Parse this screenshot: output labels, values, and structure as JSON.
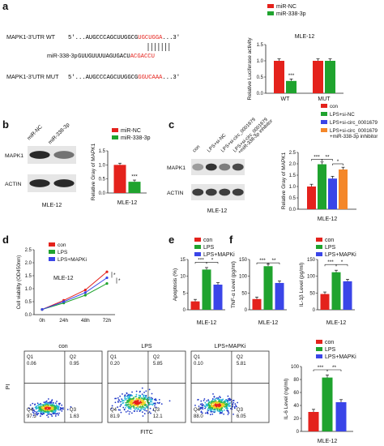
{
  "panel_letters": [
    "a",
    "b",
    "c",
    "d",
    "e",
    "f"
  ],
  "colors": {
    "red": "#e4221c",
    "green": "#1fa32e",
    "blue": "#3a45e8",
    "orange": "#f4872a",
    "gray": "#555555"
  },
  "panel_a": {
    "rows": [
      {
        "label": "MAPK1-3'UTR WT",
        "prefix": "5'...AUGCCCAGCUUGGCG",
        "highlight": "UGCUGGA",
        "suffix": "...3'"
      },
      {
        "label": "miR-338-3p",
        "prefix": "GUUGUUUUAGUGACU",
        "highlight": "ACGACCU",
        "suffix": ""
      },
      {
        "label": "MAPK1-3'UTR MUT",
        "prefix": "5'...AUGCCCAGCUUGGCG",
        "highlight": "GGUCAAA",
        "suffix": "...3'"
      }
    ]
  },
  "chart_data": [
    {
      "panel": "a",
      "type": "bar",
      "categories": [
        "WT",
        "MUT"
      ],
      "series": [
        {
          "name": "miR-NC",
          "values": [
            1.0,
            1.0
          ]
        },
        {
          "name": "miR-338-3p",
          "values": [
            0.38,
            1.0
          ]
        }
      ],
      "ylabel": "Relative Luciferase activity",
      "ylim": [
        0,
        1.5
      ],
      "yticks": [
        "0.0",
        "0.5",
        "1.0",
        "1.5"
      ],
      "title": "MLE-12",
      "annotations": [
        "***"
      ]
    },
    {
      "panel": "b",
      "type": "bar",
      "categories": [
        "MLE-12"
      ],
      "series": [
        {
          "name": "miR-NC",
          "values": [
            1.0
          ]
        },
        {
          "name": "miR-338-3p",
          "values": [
            0.4
          ]
        }
      ],
      "ylabel": "Relative Gray of MAPK1",
      "ylim": [
        0,
        1.5
      ],
      "yticks": [
        "0.0",
        "0.5",
        "1.0",
        "1.5"
      ],
      "annotations": [
        "***"
      ]
    },
    {
      "panel": "c",
      "type": "bar",
      "categories": [
        "MLE-12"
      ],
      "series": [
        {
          "name": "con",
          "values": [
            1.0
          ]
        },
        {
          "name": "LPS+si-NC",
          "values": [
            1.98
          ]
        },
        {
          "name": "LPS+si-circ_0001679",
          "values": [
            1.35
          ]
        },
        {
          "name": "LPS+si-circ_0001679 +miR-338-3p inhibitor",
          "values": [
            1.75
          ]
        }
      ],
      "ylabel": "Relative Gray of MAPK1",
      "ylim": [
        0,
        2.5
      ],
      "yticks": [
        "0.0",
        "0.5",
        "1.0",
        "1.5",
        "2.0",
        "2.5"
      ],
      "annotations": [
        "***",
        "**",
        "*"
      ]
    },
    {
      "panel": "d",
      "type": "line",
      "x": [
        "0h",
        "24h",
        "48h",
        "72h"
      ],
      "series": [
        {
          "name": "con",
          "values": [
            0.2,
            0.55,
            0.95,
            1.65
          ]
        },
        {
          "name": "LPS",
          "values": [
            0.2,
            0.45,
            0.75,
            1.2
          ]
        },
        {
          "name": "LPS+MAPKi",
          "values": [
            0.2,
            0.5,
            0.85,
            1.42
          ]
        }
      ],
      "ylabel": "Cell viability (OD450nm)",
      "ylim": [
        0,
        2.5
      ],
      "yticks": [
        "0.0",
        "0.5",
        "1.0",
        "1.5",
        "2.0",
        "2.5"
      ],
      "title": "MLE-12",
      "annotations": [
        "*",
        "*"
      ]
    },
    {
      "panel": "e",
      "type": "bar",
      "categories": [
        "MLE-12"
      ],
      "series": [
        {
          "name": "con",
          "values": [
            2.5
          ]
        },
        {
          "name": "LPS",
          "values": [
            12
          ]
        },
        {
          "name": "LPS+MAPKi",
          "values": [
            7.5
          ]
        }
      ],
      "ylabel": "Apoptosis (%)",
      "ylim": [
        0,
        15
      ],
      "yticks": [
        "0",
        "5",
        "10",
        "15"
      ],
      "annotations": [
        "***",
        "*"
      ]
    },
    {
      "panel": "f1",
      "type": "bar",
      "categories": [
        "MLE-12"
      ],
      "series": [
        {
          "name": "con",
          "values": [
            32
          ]
        },
        {
          "name": "LPS",
          "values": [
            130
          ]
        },
        {
          "name": "LPS+MAPKi",
          "values": [
            80
          ]
        }
      ],
      "ylabel": "TNF-α Level (pg/ml)",
      "ylim": [
        0,
        150
      ],
      "yticks": [
        "0",
        "50",
        "100",
        "150"
      ],
      "annotations": [
        "***",
        "**"
      ]
    },
    {
      "panel": "f2",
      "type": "bar",
      "categories": [
        "MLE-12"
      ],
      "series": [
        {
          "name": "con",
          "values": [
            47
          ]
        },
        {
          "name": "LPS",
          "values": [
            112
          ]
        },
        {
          "name": "LPS+MAPKi",
          "values": [
            85
          ]
        }
      ],
      "ylabel": "IL-1β Level (pg/ml)",
      "ylim": [
        0,
        150
      ],
      "yticks": [
        "0",
        "50",
        "100",
        "150"
      ],
      "annotations": [
        "***",
        "*"
      ]
    },
    {
      "panel": "f3",
      "type": "bar",
      "categories": [
        "MLE-12"
      ],
      "series": [
        {
          "name": "con",
          "values": [
            30
          ]
        },
        {
          "name": "LPS",
          "values": [
            83
          ]
        },
        {
          "name": "LPS+MAPKi",
          "values": [
            45
          ]
        }
      ],
      "ylabel": "IL-6 Level (ng/ml)",
      "ylim": [
        0,
        100
      ],
      "yticks": [
        "0",
        "20",
        "40",
        "60",
        "80",
        "100"
      ],
      "annotations": [
        "***",
        "**"
      ]
    }
  ],
  "panel_b": {
    "lanes": [
      "miR-NC",
      "miR-338-3p"
    ],
    "bands": [
      "MAPK1",
      "ACTIN"
    ],
    "cell_label": "MLE-12"
  },
  "panel_c": {
    "lanes": [
      "con",
      "LPS+si-NC",
      "LPS+si-circ_0001679",
      "LPS+si-circ_0001679 +miR-338-3p inhibitor"
    ],
    "bands": [
      "MAPK1",
      "ACTIN"
    ],
    "cell_label": "MLE-12"
  },
  "flow": {
    "xlabel": "FITC",
    "ylabel": "PI",
    "plots": [
      {
        "title": "con",
        "q1": "Q1",
        "q1v": "0.06",
        "q2": "Q2",
        "q2v": "0.95",
        "q3": "Q3",
        "q3v": "1.63",
        "q4": "Q4",
        "q4v": "97.3"
      },
      {
        "title": "LPS",
        "q1": "Q1",
        "q1v": "0.20",
        "q2": "Q2",
        "q2v": "5.85",
        "q3": "Q3",
        "q3v": "12.1",
        "q4": "Q4",
        "q4v": "81.9"
      },
      {
        "title": "LPS+MAPKi",
        "q1": "Q1",
        "q1v": "0.10",
        "q2": "Q2",
        "q2v": "5.81",
        "q3": "Q3",
        "q3v": "6.05",
        "q4": "Q4",
        "q4v": "88.0"
      }
    ]
  }
}
